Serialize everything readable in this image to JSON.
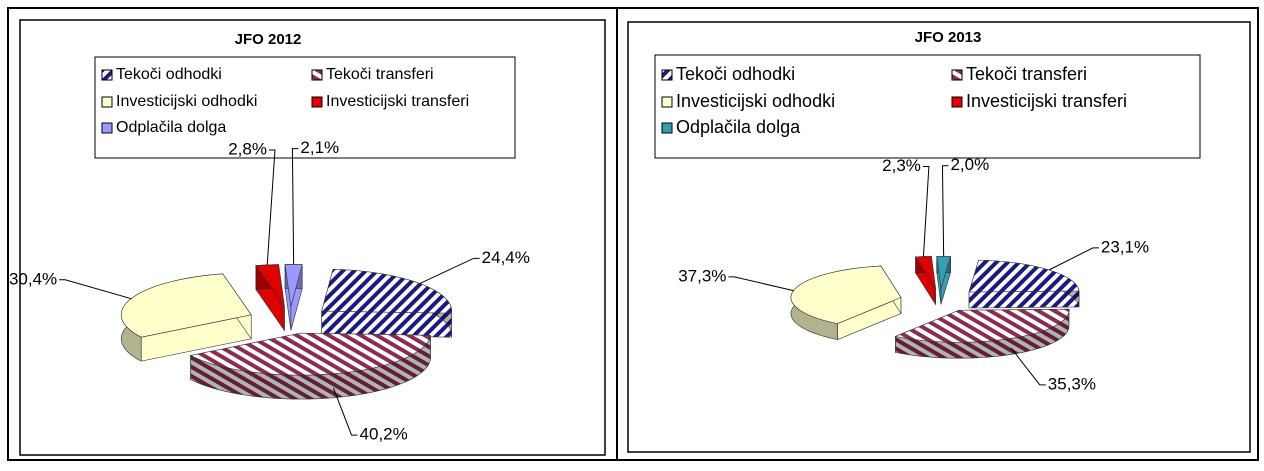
{
  "chart_data": [
    {
      "type": "pie",
      "title": "JFO 2012",
      "categories": [
        "Tekoči odhodki",
        "Tekoči transferi",
        "Investicijski odhodki",
        "Investicijski transferi",
        "Odplačila dolga"
      ],
      "values": [
        24.4,
        40.2,
        30.4,
        2.8,
        2.1
      ],
      "value_labels": [
        "24,4%",
        "40,2%",
        "30,4%",
        "2,8%",
        "2,1%"
      ],
      "colors": [
        "#1a1a80",
        "#8b2d52",
        "#ffffcc",
        "#e00000",
        "#9999ff"
      ],
      "hatch": [
        true,
        true,
        false,
        false,
        false
      ]
    },
    {
      "type": "pie",
      "title": "JFO 2013",
      "categories": [
        "Tekoči odhodki",
        "Tekoči transferi",
        "Investicijski odhodki",
        "Investicijski transferi",
        "Odplačila dolga"
      ],
      "values": [
        23.1,
        35.3,
        37.3,
        2.3,
        2.0
      ],
      "value_labels": [
        "23,1%",
        "35,3%",
        "37,3%",
        "2,3%",
        "2,0%"
      ],
      "colors": [
        "#1a1a80",
        "#8b2d52",
        "#ffffcc",
        "#e00000",
        "#33a0b0"
      ],
      "hatch": [
        true,
        true,
        false,
        false,
        false
      ]
    }
  ]
}
